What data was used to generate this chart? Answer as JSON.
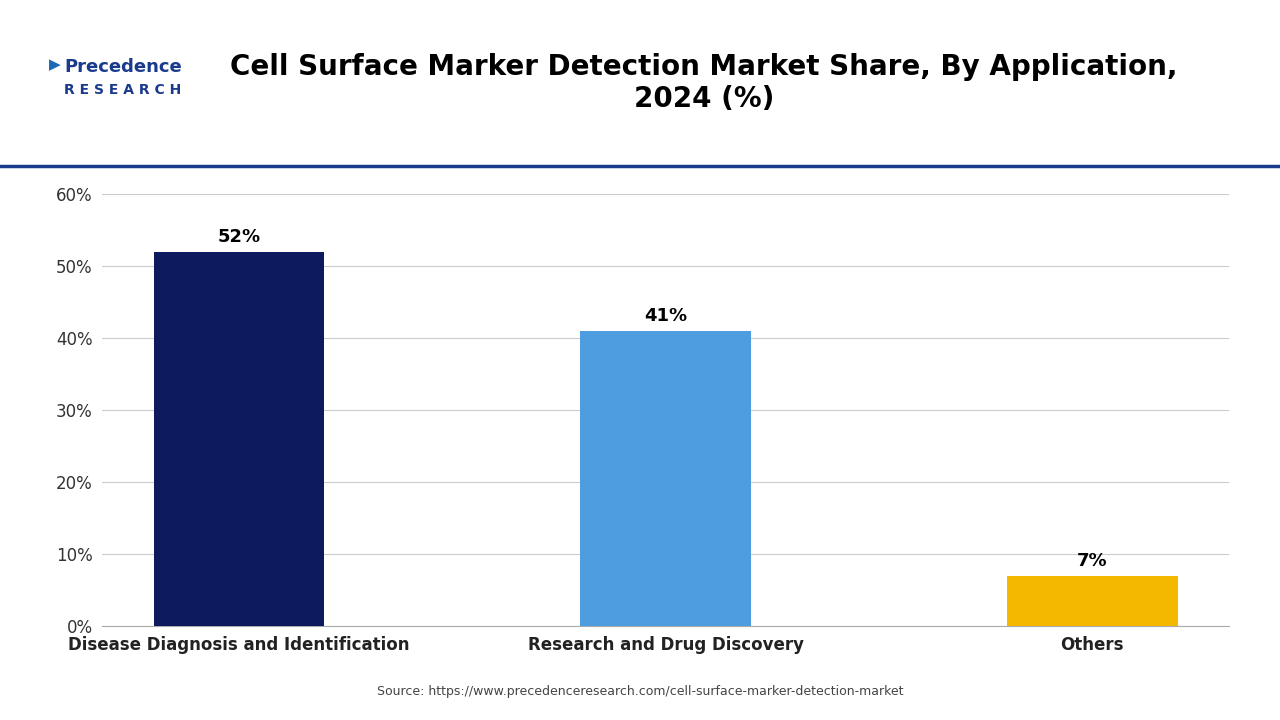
{
  "title": "Cell Surface Marker Detection Market Share, By Application,\n2024 (%)",
  "categories": [
    "Disease Diagnosis and Identification",
    "Research and Drug Discovery",
    "Others"
  ],
  "values": [
    52,
    41,
    7
  ],
  "bar_colors": [
    "#0d1b5e",
    "#4d9de0",
    "#f5b800"
  ],
  "labels": [
    "52%",
    "41%",
    "7%"
  ],
  "ylim": [
    0,
    60
  ],
  "yticks": [
    0,
    10,
    20,
    30,
    40,
    50,
    60
  ],
  "ytick_labels": [
    "0%",
    "10%",
    "20%",
    "30%",
    "40%",
    "50%",
    "60%"
  ],
  "background_color": "#ffffff",
  "source_text": "Source: https://www.precedenceresearch.com/cell-surface-marker-detection-market",
  "title_fontsize": 20,
  "label_fontsize": 13,
  "tick_fontsize": 12,
  "xlabel_fontsize": 12,
  "bar_width": 0.4,
  "grid_color": "#cccccc",
  "axis_line_color": "#aaaaaa",
  "logo_text_line1": "Precedence",
  "logo_text_line2": "R E S E A R C H",
  "logo_color": "#1a3a8c",
  "separator_color": "#1a3a8c"
}
